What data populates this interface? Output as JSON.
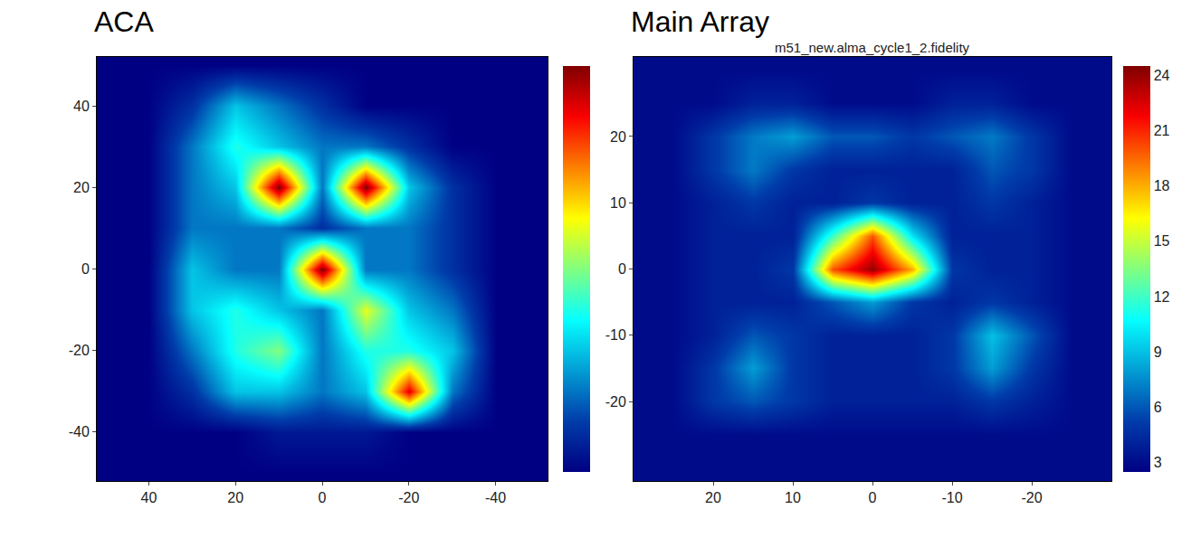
{
  "chart_data": [
    {
      "type": "heatmap",
      "title": "ACA",
      "color": "Jet",
      "x": [
        -50,
        -40,
        -30,
        -20,
        -10,
        0,
        10,
        20,
        30,
        40,
        50
      ],
      "y": [
        -50,
        -40,
        -30,
        -20,
        -10,
        0,
        10,
        20,
        30,
        40,
        50
      ],
      "z": [
        [
          0,
          0,
          0,
          0,
          0,
          0,
          0,
          0,
          0,
          0,
          0
        ],
        [
          0,
          0,
          0,
          0,
          0.5,
          0.5,
          0.5,
          0,
          0,
          0,
          0
        ],
        [
          0,
          0,
          2,
          9,
          3,
          2,
          3,
          3,
          1,
          0,
          0
        ],
        [
          0,
          0,
          3,
          4,
          4,
          2,
          5,
          4,
          2,
          0,
          0
        ],
        [
          0,
          0,
          2,
          3,
          6,
          2,
          3,
          4,
          3,
          0,
          0
        ],
        [
          0,
          0,
          1,
          2,
          2,
          10,
          2,
          2,
          3,
          0,
          0
        ],
        [
          0,
          0,
          1,
          2,
          2,
          1,
          2,
          2,
          2,
          0,
          0
        ],
        [
          0,
          0,
          1,
          3,
          10,
          2,
          10,
          3,
          2,
          0,
          0
        ],
        [
          0,
          0,
          0,
          1,
          2,
          2,
          3,
          4,
          2,
          0,
          0
        ],
        [
          0,
          0,
          0,
          0,
          0,
          1,
          2,
          3,
          1,
          0,
          0
        ],
        [
          0,
          0,
          0,
          0,
          0,
          0,
          0,
          0,
          0,
          0,
          0
        ]
      ],
      "xlim": [
        52,
        -52
      ],
      "ylim": [
        -52,
        52
      ],
      "xticks": [
        40,
        20,
        0,
        -20,
        -40
      ],
      "yticks": [
        -40,
        -20,
        0,
        20,
        40
      ],
      "colorbar": {
        "range": [
          0,
          10
        ]
      }
    },
    {
      "type": "heatmap",
      "title": "Main Array",
      "subtitle": "m51_new.alma_cycle1_2.fidelity",
      "color": "Jet",
      "x": [
        -30,
        -25,
        -20,
        -15,
        -10,
        -5,
        0,
        5,
        10,
        15,
        20,
        25,
        30
      ],
      "y": [
        -30,
        -25,
        -20,
        -15,
        -10,
        -5,
        0,
        5,
        10,
        15,
        20,
        25,
        30
      ],
      "z": [
        [
          3,
          3,
          3,
          3,
          3,
          3,
          3,
          3,
          3,
          3,
          3,
          3,
          3
        ],
        [
          3,
          3,
          3,
          3,
          3,
          3,
          3,
          3,
          3,
          3,
          3,
          3,
          3
        ],
        [
          3,
          3,
          4,
          5,
          4,
          4,
          4,
          4,
          5,
          6,
          5,
          3,
          3
        ],
        [
          3,
          3,
          5,
          8,
          5,
          4,
          4,
          4,
          5,
          8,
          5,
          3,
          3
        ],
        [
          3,
          3,
          6,
          9,
          5,
          4,
          4,
          4,
          5,
          6,
          4,
          3,
          3
        ],
        [
          3,
          3,
          4,
          5,
          4,
          5,
          8,
          6,
          4,
          4,
          4,
          3,
          3
        ],
        [
          3,
          3,
          4,
          4,
          5,
          18,
          24,
          20,
          5,
          4,
          4,
          3,
          3
        ],
        [
          3,
          3,
          4,
          4,
          4,
          10,
          20,
          12,
          4,
          4,
          4,
          3,
          3
        ],
        [
          3,
          3,
          4,
          5,
          4,
          4,
          5,
          4,
          4,
          5,
          4,
          3,
          3
        ],
        [
          3,
          3,
          5,
          6,
          4,
          4,
          4,
          4,
          5,
          7,
          5,
          3,
          3
        ],
        [
          3,
          3,
          5,
          7,
          6,
          5,
          6,
          6,
          8,
          7,
          5,
          3,
          3
        ],
        [
          3,
          3,
          3,
          4,
          4,
          3,
          3,
          3,
          4,
          4,
          3,
          3,
          3
        ],
        [
          3,
          3,
          3,
          3,
          3,
          3,
          3,
          3,
          3,
          3,
          3,
          3,
          3
        ]
      ],
      "xlim": [
        30,
        -30
      ],
      "ylim": [
        -32,
        32
      ],
      "xticks": [
        20,
        10,
        0,
        -10,
        -20
      ],
      "yticks": [
        -20,
        -10,
        0,
        10,
        20
      ],
      "colorbar": {
        "range": [
          2.5,
          24.5
        ],
        "ticks": [
          3,
          6,
          9,
          12,
          15,
          18,
          21,
          24
        ]
      }
    }
  ]
}
